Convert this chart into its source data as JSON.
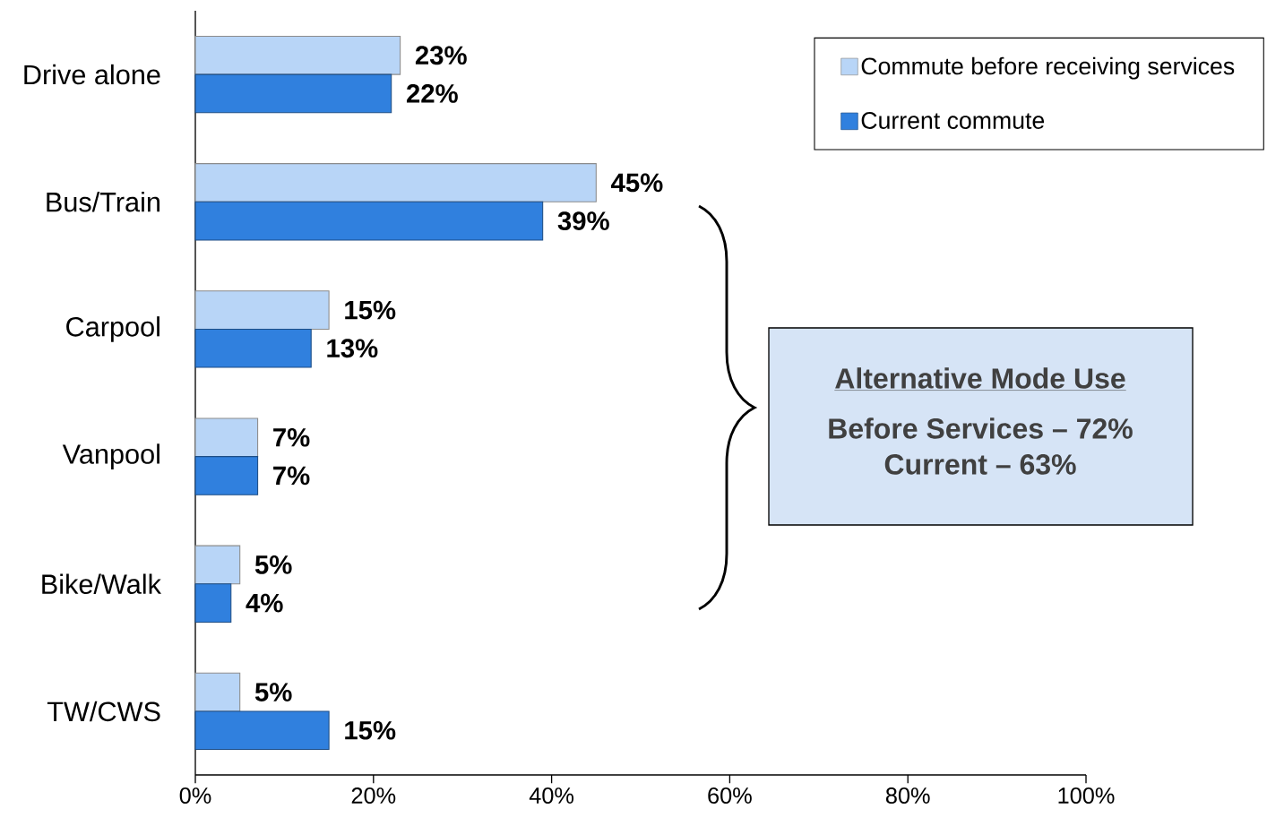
{
  "chart_data": {
    "type": "bar",
    "orientation": "horizontal",
    "categories": [
      "Drive alone",
      "Bus/Train",
      "Carpool",
      "Vanpool",
      "Bike/Walk",
      "TW/CWS"
    ],
    "series": [
      {
        "name": "Commute before receiving services",
        "color": "#b8d5f7",
        "values": [
          23,
          45,
          15,
          7,
          5,
          5
        ],
        "value_labels": [
          "23%",
          "45%",
          "15%",
          "7%",
          "5%",
          "5%"
        ]
      },
      {
        "name": "Current commute",
        "color": "#3080de",
        "values": [
          22,
          39,
          13,
          7,
          4,
          15
        ],
        "value_labels": [
          "22%",
          "39%",
          "13%",
          "7%",
          "4%",
          "15%"
        ]
      }
    ],
    "xlim": [
      0,
      100
    ],
    "xticks": [
      {
        "value": 0,
        "label": "0%"
      },
      {
        "value": 20,
        "label": "20%"
      },
      {
        "value": 40,
        "label": "40%"
      },
      {
        "value": 60,
        "label": "60%"
      },
      {
        "value": 80,
        "label": "80%"
      },
      {
        "value": 100,
        "label": "100%"
      }
    ],
    "legend": "top right",
    "grid": false,
    "annotations": [
      "Alternative Mode Use",
      "Before Services – 72%",
      "Current – 63%"
    ]
  }
}
